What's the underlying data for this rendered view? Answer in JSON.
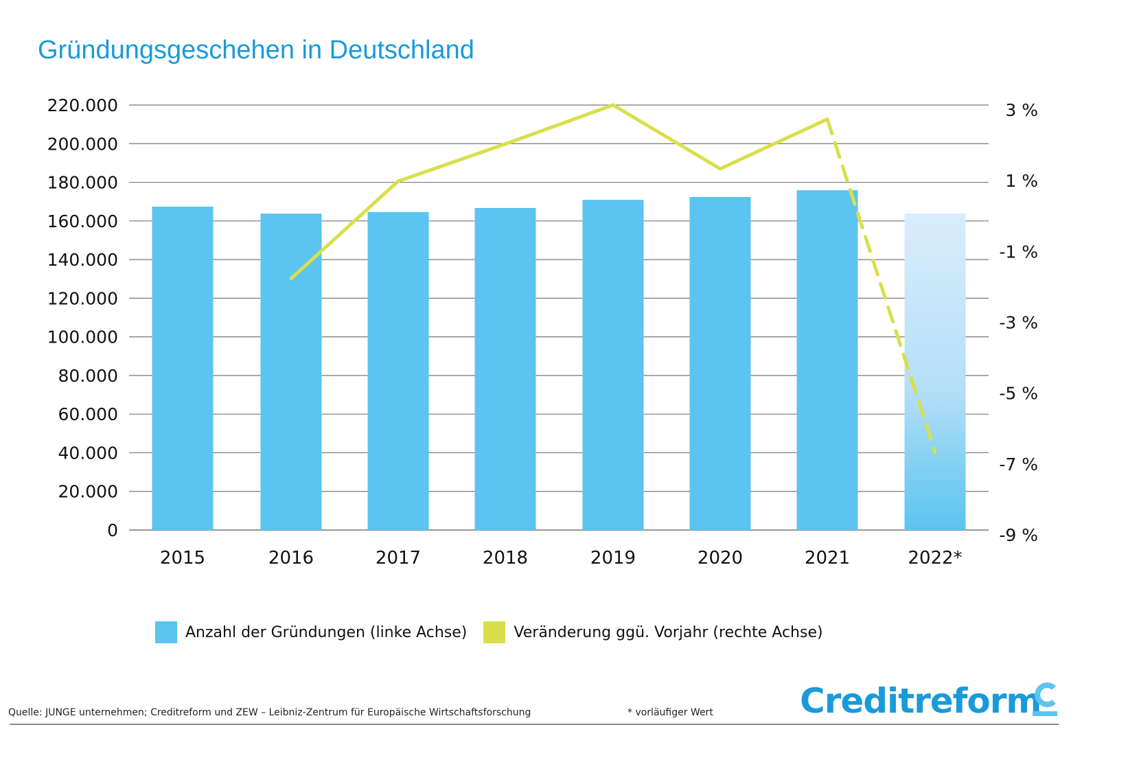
{
  "title": "Gründungsgeschehen in Deutschland",
  "colors": {
    "title": "#1a9ad9",
    "bar": "#5bc4f0",
    "bar_estimate_top": "#d9edfb",
    "bar_estimate_bottom": "#5bc4f0",
    "line": "#d9df4a",
    "grid": "#777777",
    "logo": "#1a9ad9"
  },
  "chart_data": {
    "type": "bar",
    "title": "Gründungsgeschehen in Deutschland",
    "xlabel": "",
    "ylabel": "",
    "categories": [
      "2015",
      "2016",
      "2017",
      "2018",
      "2019",
      "2020",
      "2021",
      "2022*"
    ],
    "series": [
      {
        "name": "Anzahl der Gründungen (linke Achse)",
        "type": "bar",
        "axis": "left",
        "values": [
          167400,
          163800,
          164600,
          166700,
          170900,
          172400,
          175900,
          163800
        ],
        "estimated": [
          false,
          false,
          false,
          false,
          false,
          false,
          false,
          true
        ]
      },
      {
        "name": "Veränderung ggü. Vorjahr (rechte Achse)",
        "type": "line",
        "axis": "right",
        "values": [
          null,
          -1.9,
          0.85,
          1.9,
          3.0,
          1.2,
          2.6,
          -6.8
        ],
        "dashed_from_index": 6
      }
    ],
    "left_axis": {
      "ylim": [
        0,
        220000
      ],
      "ticks": [
        0,
        20000,
        40000,
        60000,
        80000,
        100000,
        120000,
        140000,
        160000,
        180000,
        200000,
        220000
      ],
      "tick_labels": [
        "0",
        "20.000",
        "40.000",
        "60.000",
        "80.000",
        "100.000",
        "120.000",
        "140.000",
        "160.000",
        "180.000",
        "200.000",
        "220.000"
      ]
    },
    "right_axis": {
      "ylim": [
        -9,
        3
      ],
      "ticks": [
        3,
        1,
        -1,
        -3,
        -5,
        -7,
        -9
      ],
      "tick_labels": [
        "3 %",
        "1 %",
        "-1 %",
        "-3 %",
        "-5 %",
        "-7 %",
        "-9 %"
      ]
    },
    "grid": true,
    "legend": "bottom"
  },
  "legend": {
    "items": [
      {
        "label": "Anzahl der Gründungen (linke Achse)"
      },
      {
        "label": "Veränderung ggü. Vorjahr (rechte Achse)"
      }
    ]
  },
  "footer": {
    "source": "Quelle: JUNGE unternehmen; Creditreform und ZEW – Leibniz-Zentrum für Europäische Wirtschaftsforschung",
    "note": "* vorläufiger Wert",
    "logo_text": "Creditreform"
  }
}
